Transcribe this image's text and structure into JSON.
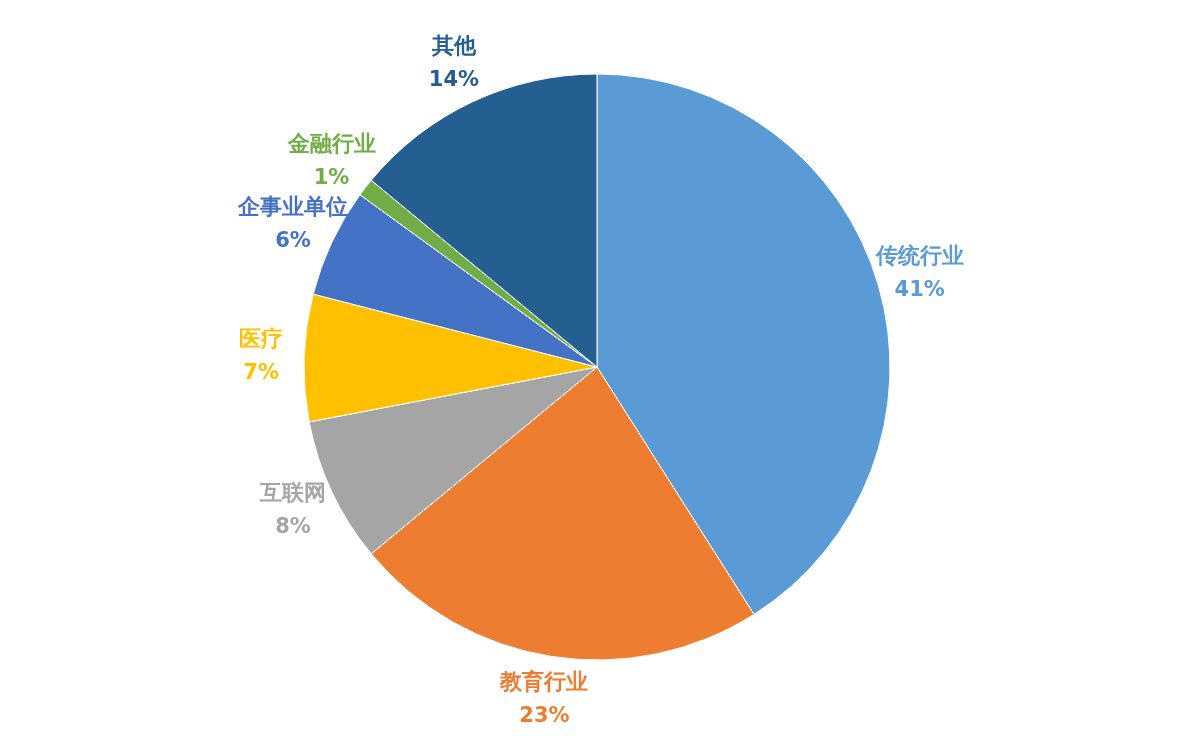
{
  "chart_data": {
    "type": "pie",
    "categories": [
      "传统行业",
      "教育行业",
      "互联网",
      "医疗",
      "企事业单位",
      "金融行业",
      "其他"
    ],
    "values": [
      41,
      23,
      8,
      7,
      6,
      1,
      14
    ],
    "value_labels": [
      "41%",
      "23%",
      "8%",
      "7%",
      "6%",
      "1%",
      "14%"
    ],
    "colors": [
      "#5b9bd5",
      "#ed7d31",
      "#a5a5a5",
      "#ffc000",
      "#4472c4",
      "#70ad47",
      "#255e91"
    ]
  }
}
